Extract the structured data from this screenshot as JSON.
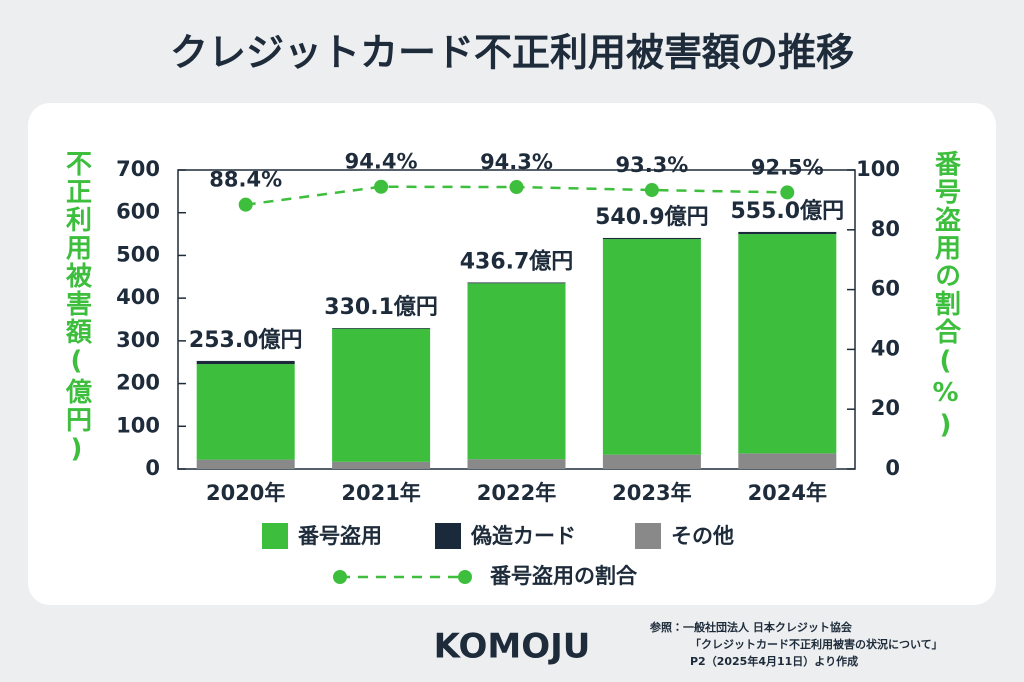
{
  "chart_data": {
    "type": "bar",
    "title": "クレジットカード不正利用被害額の推移",
    "y_label": "不正利用被害額(億円)",
    "y2_label": "番号盗用の割合(%)",
    "categories": [
      "2020年",
      "2021年",
      "2022年",
      "2023年",
      "2024年"
    ],
    "series": [
      {
        "name": "その他",
        "color": "#898989",
        "values": [
          22.0,
          16.8,
          23.0,
          33.6,
          36.6
        ]
      },
      {
        "name": "番号盗用",
        "color": "#3dbe3d",
        "values": [
          223.6,
          311.7,
          411.7,
          504.7,
          513.4
        ]
      },
      {
        "name": "偽造カード",
        "color": "#1b2a3b",
        "values": [
          7.4,
          1.6,
          2.0,
          2.6,
          5.0
        ]
      },
      {
        "name": "番号盗用の割合",
        "type": "line",
        "axis": "y2",
        "color": "#3dbe3d",
        "values": [
          88.4,
          94.4,
          94.3,
          93.3,
          92.5
        ],
        "value_labels": [
          "88.4%",
          "94.4%",
          "94.3%",
          "93.3%",
          "92.5%"
        ]
      }
    ],
    "totals": {
      "values": [
        253.0,
        330.1,
        436.7,
        540.9,
        555.0
      ],
      "value_labels": [
        "253.0億円",
        "330.1億円",
        "436.7億円",
        "540.9億円",
        "555.0億円"
      ]
    },
    "ylim": [
      0,
      700
    ],
    "yticks": [
      0,
      100,
      200,
      300,
      400,
      500,
      600,
      700
    ],
    "y2lim": [
      0,
      100
    ],
    "y2ticks": [
      0,
      20,
      40,
      60,
      80,
      100
    ],
    "legend_order": [
      1,
      2,
      0
    ]
  },
  "source": [
    "参照：一般社団法人 日本クレジット協会",
    "「クレジットカード不正利用被害の状況について」",
    "P2（2025年4月11日）より作成"
  ],
  "logo": "KOMOJU"
}
